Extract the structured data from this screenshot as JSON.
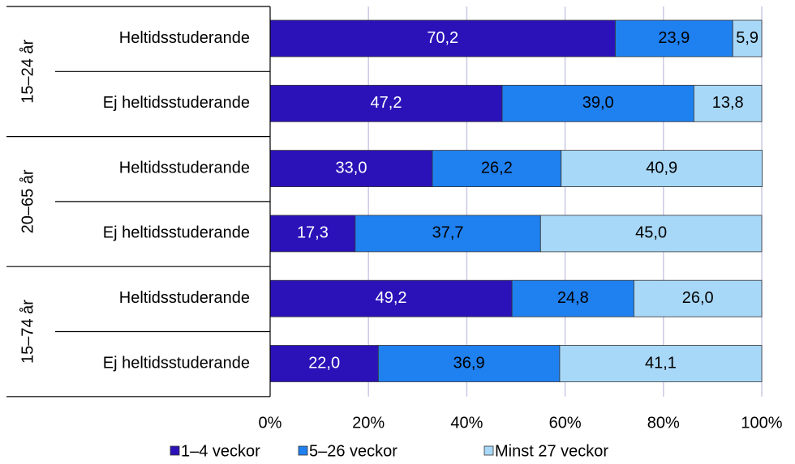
{
  "chart_data": {
    "type": "stacked-barh",
    "groups": [
      "15–24 år",
      "20–65 år",
      "15–74 år"
    ],
    "categories": [
      "Heltidsstuderande",
      "Ej heltidsstuderande",
      "Heltidsstuderande",
      "Ej heltidsstuderande",
      "Heltidsstuderande",
      "Ej heltidsstuderande"
    ],
    "series": [
      {
        "name": "1–4 veckor",
        "color": "#2b12b8",
        "values": [
          70.2,
          47.2,
          33.0,
          17.3,
          49.2,
          22.0
        ],
        "value_labels": [
          "70,2",
          "47,2",
          "33,0",
          "17,3",
          "49,2",
          "22,0"
        ]
      },
      {
        "name": "5–26 veckor",
        "color": "#1f80f0",
        "values": [
          23.9,
          39.0,
          26.2,
          37.7,
          24.8,
          36.9
        ],
        "value_labels": [
          "23,9",
          "39,0",
          "26,2",
          "37,7",
          "24,8",
          "36,9"
        ]
      },
      {
        "name": "Minst 27 veckor",
        "color": "#a8d8f8",
        "values": [
          5.9,
          13.8,
          40.9,
          45.0,
          26.0,
          41.1
        ],
        "value_labels": [
          "5,9",
          "13,8",
          "40,9",
          "45,0",
          "26,0",
          "41,1"
        ]
      }
    ],
    "xlim": [
      0,
      100
    ],
    "xticks": [
      {
        "value": 0,
        "label": "0%"
      },
      {
        "value": 20,
        "label": "20%"
      },
      {
        "value": 40,
        "label": "40%"
      },
      {
        "value": 60,
        "label": "60%"
      },
      {
        "value": 80,
        "label": "80%"
      },
      {
        "value": 100,
        "label": "100%"
      }
    ],
    "grid": true
  }
}
